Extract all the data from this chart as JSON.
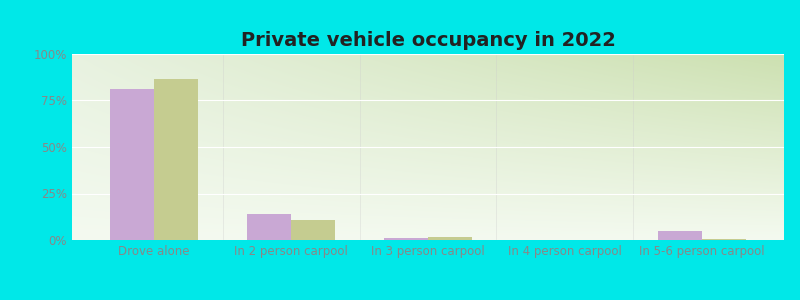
{
  "title": "Private vehicle occupancy in 2022",
  "categories": [
    "Drove alone",
    "In 2 person carpool",
    "In 3 person carpool",
    "In 4 person carpool",
    "In 5-6 person carpool"
  ],
  "sunnyside": [
    81.0,
    14.2,
    0.9,
    0.2,
    4.8
  ],
  "washington": [
    86.5,
    10.5,
    1.4,
    0.15,
    0.4
  ],
  "sunnyside_color": "#c9a8d4",
  "washington_color": "#c5cc90",
  "background_outer": "#00e8e8",
  "background_tl": "#f0f5ee",
  "background_tr": "#d8e8c8",
  "background_bl": "#f8faf5",
  "background_br": "#e8f2d8",
  "grid_color": "#ffffff",
  "tick_color": "#888888",
  "title_fontsize": 14,
  "axis_label_fontsize": 8.5,
  "legend_fontsize": 9.5,
  "ylim": [
    0,
    100
  ],
  "yticks": [
    0,
    25,
    50,
    75,
    100
  ],
  "ytick_labels": [
    "0%",
    "25%",
    "50%",
    "75%",
    "100%"
  ]
}
